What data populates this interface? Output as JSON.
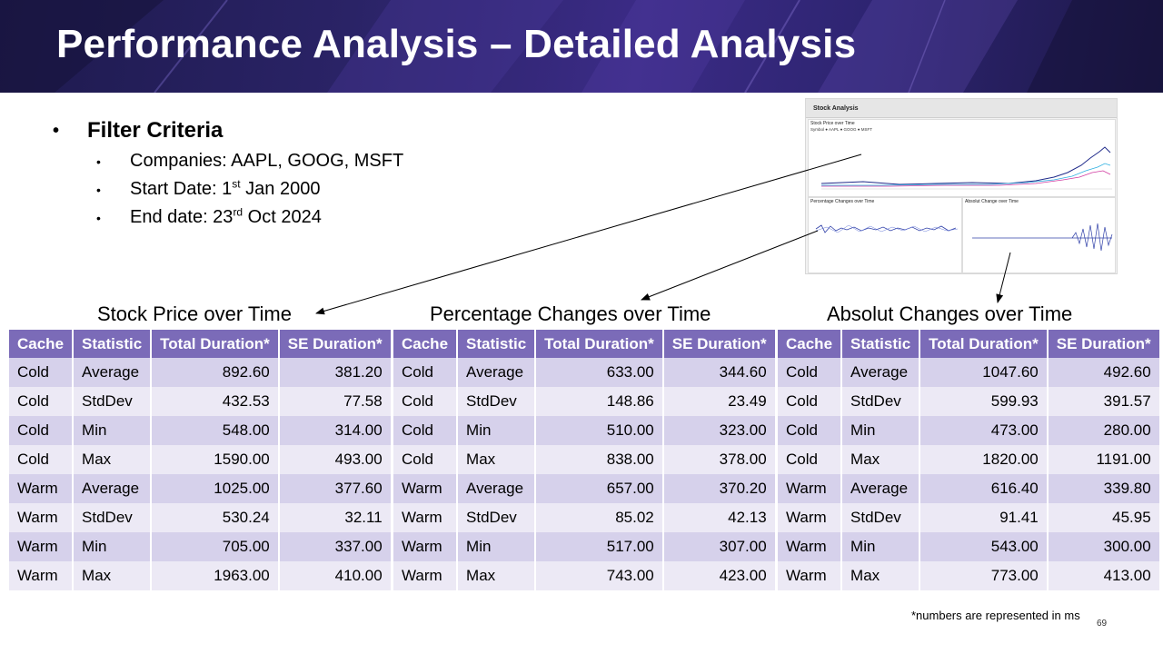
{
  "title": "Performance Analysis – Detailed Analysis",
  "filter": {
    "heading": "Filter Criteria",
    "companies": "Companies: AAPL, GOOG, MSFT",
    "start_prefix": "Start Date: 1",
    "start_sup": "st",
    "start_suffix": " Jan 2000",
    "end_prefix": "End date: 23",
    "end_sup": "rd",
    "end_suffix": " Oct 2024"
  },
  "thumbnail": {
    "title": "Stock Analysis",
    "panel_stock": "Stock Price over Time",
    "panel_pct": "Percentage Changes over Time",
    "panel_abs": "Absolut Change over Time",
    "legend": "Symbol ● AAPL ● GOOG ● MSFT"
  },
  "headers": [
    "Cache",
    "Statistic",
    "Total Duration*",
    "SE Duration*"
  ],
  "sections": [
    {
      "title": "Stock Price over Time",
      "rows": [
        [
          "Cold",
          "Average",
          "892.60",
          "381.20"
        ],
        [
          "Cold",
          "StdDev",
          "432.53",
          "77.58"
        ],
        [
          "Cold",
          "Min",
          "548.00",
          "314.00"
        ],
        [
          "Cold",
          "Max",
          "1590.00",
          "493.00"
        ],
        [
          "Warm",
          "Average",
          "1025.00",
          "377.60"
        ],
        [
          "Warm",
          "StdDev",
          "530.24",
          "32.11"
        ],
        [
          "Warm",
          "Min",
          "705.00",
          "337.00"
        ],
        [
          "Warm",
          "Max",
          "1963.00",
          "410.00"
        ]
      ]
    },
    {
      "title": "Percentage Changes over Time",
      "rows": [
        [
          "Cold",
          "Average",
          "633.00",
          "344.60"
        ],
        [
          "Cold",
          "StdDev",
          "148.86",
          "23.49"
        ],
        [
          "Cold",
          "Min",
          "510.00",
          "323.00"
        ],
        [
          "Cold",
          "Max",
          "838.00",
          "378.00"
        ],
        [
          "Warm",
          "Average",
          "657.00",
          "370.20"
        ],
        [
          "Warm",
          "StdDev",
          "85.02",
          "42.13"
        ],
        [
          "Warm",
          "Min",
          "517.00",
          "307.00"
        ],
        [
          "Warm",
          "Max",
          "743.00",
          "423.00"
        ]
      ]
    },
    {
      "title": "Absolut Changes over Time",
      "rows": [
        [
          "Cold",
          "Average",
          "1047.60",
          "492.60"
        ],
        [
          "Cold",
          "StdDev",
          "599.93",
          "391.57"
        ],
        [
          "Cold",
          "Min",
          "473.00",
          "280.00"
        ],
        [
          "Cold",
          "Max",
          "1820.00",
          "1191.00"
        ],
        [
          "Warm",
          "Average",
          "616.40",
          "339.80"
        ],
        [
          "Warm",
          "StdDev",
          "91.41",
          "45.95"
        ],
        [
          "Warm",
          "Min",
          "543.00",
          "300.00"
        ],
        [
          "Warm",
          "Max",
          "773.00",
          "413.00"
        ]
      ]
    }
  ],
  "footnote": "*numbers are represented in ms",
  "page_number": "69",
  "colors": {
    "banner": "#2a2366",
    "header": "#7b6bb8",
    "row_dark": "#d6d1eb",
    "row_light": "#ece9f5"
  }
}
